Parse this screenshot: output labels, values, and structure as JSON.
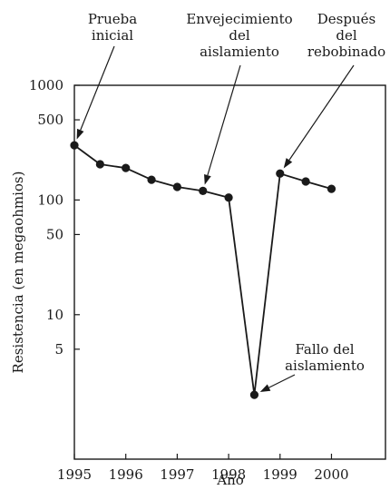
{
  "chart_data": {
    "type": "line",
    "xlabel": "Año",
    "ylabel": "Resistencia (en megaohmios)",
    "y_scale": "log",
    "x_ticks": [
      "1995",
      "1996",
      "1997",
      "1998",
      "1999",
      "2000"
    ],
    "y_ticks": [
      "1000",
      "500",
      "100",
      "50",
      "10",
      "5"
    ],
    "xlim": [
      1995,
      2001.05
    ],
    "ylim": [
      0.55,
      1000
    ],
    "grid": false,
    "segments": [
      {
        "x": [
          1995,
          1995.5,
          1996,
          1996.5,
          1997,
          1997.5,
          1998,
          1998.5,
          1999,
          1999.5,
          2000
        ],
        "y": [
          300,
          205,
          190,
          150,
          130,
          120,
          105,
          2,
          170,
          145,
          125
        ]
      }
    ],
    "annotations": [
      {
        "lines": [
          "Prueba",
          "inicial"
        ],
        "x": 1995,
        "y": 300
      },
      {
        "lines": [
          "Envejecimiento",
          "del",
          "aislamiento"
        ],
        "x": 1997.5,
        "y": 120
      },
      {
        "lines": [
          "Después",
          "del",
          "rebobinado"
        ],
        "x": 1999,
        "y": 170
      },
      {
        "lines": [
          "Fallo del",
          "aislamiento"
        ],
        "x": 1998.5,
        "y": 2
      }
    ]
  }
}
